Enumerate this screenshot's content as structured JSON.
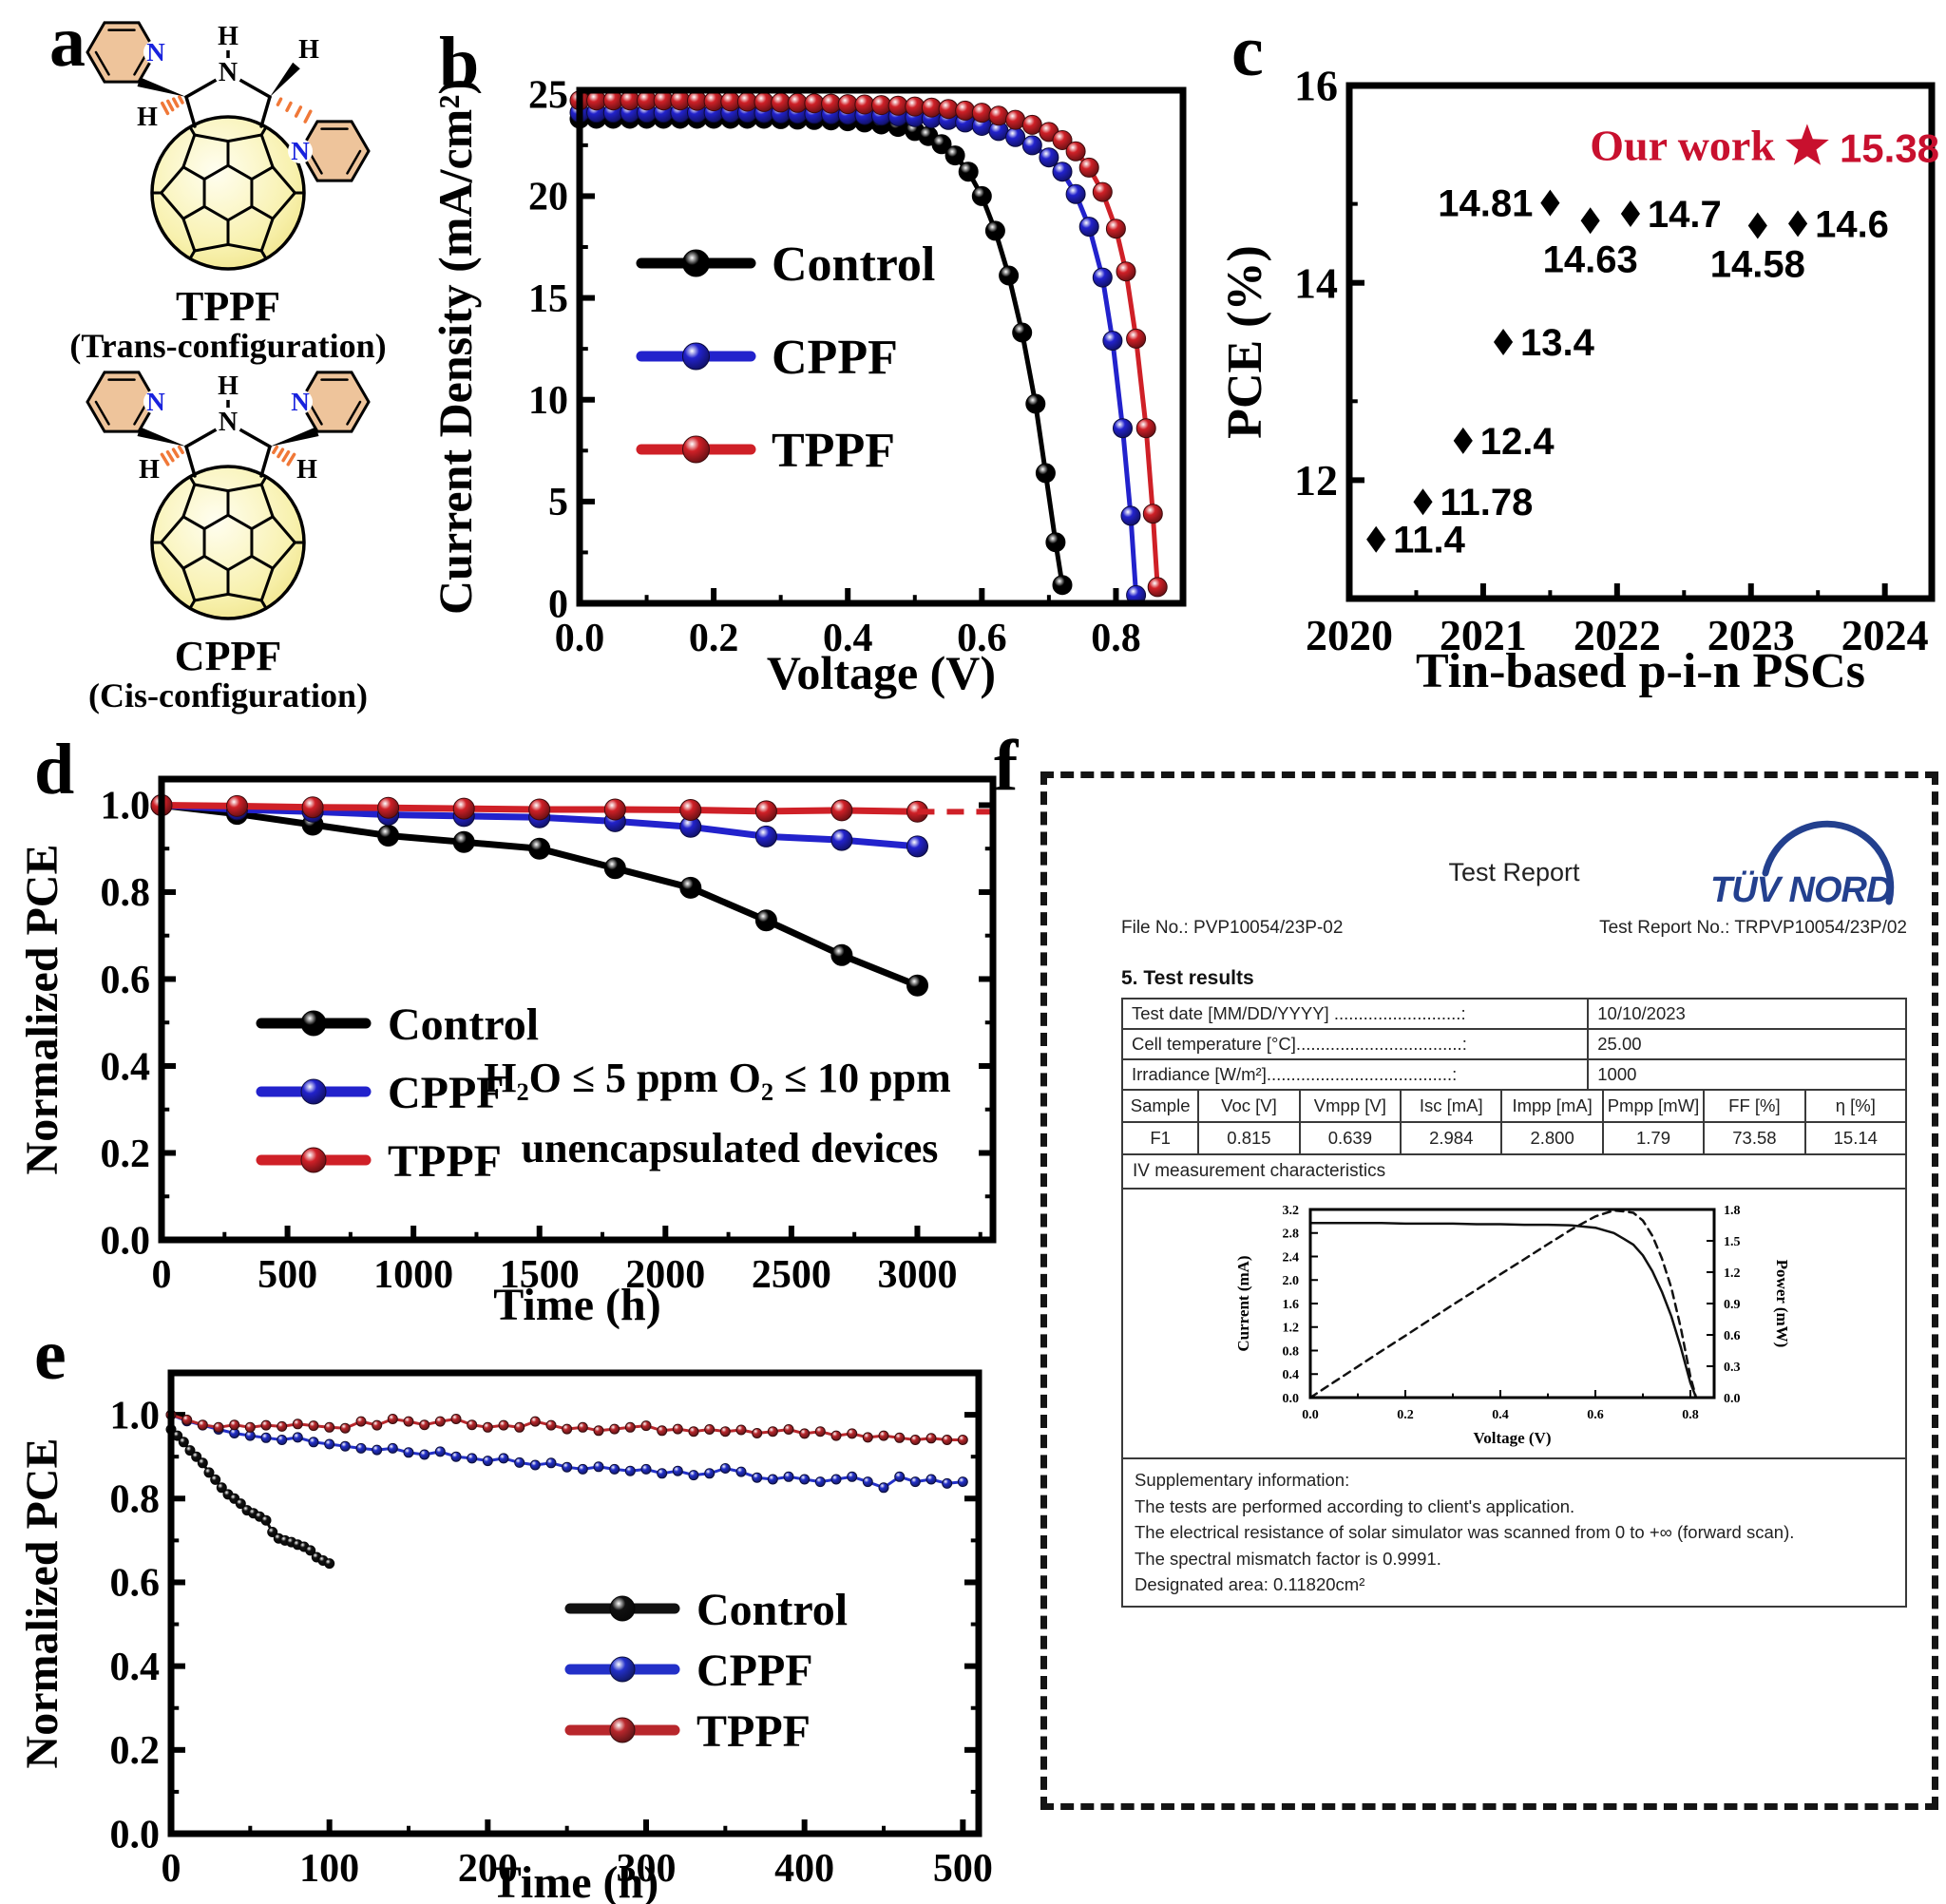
{
  "page": {
    "panel_labels": {
      "a": "a",
      "b": "b",
      "c": "c",
      "d": "d",
      "e": "e",
      "f": "f"
    }
  },
  "panel_a": {
    "molecules": [
      {
        "name": "TPPF",
        "config": "(Trans-configuration)",
        "type": "trans"
      },
      {
        "name": "CPPF",
        "config": "(Cis-configuration)",
        "type": "cis"
      }
    ],
    "atoms": {
      "nitrogen": "N",
      "hydrogen": "H"
    },
    "colors": {
      "nitrogen": "#1822dd",
      "ring_fill": "#eec49b",
      "hash_bond": "#f07838",
      "fullerene_fill": "#f5eda0"
    }
  },
  "chart_data": [
    {
      "id": "jv",
      "type": "line",
      "xlabel": "Voltage (V)",
      "ylabel": "Current Density (mA/cm²)",
      "xlim": [
        0,
        0.9
      ],
      "ylim": [
        0,
        25.2
      ],
      "xticks": {
        "values": [
          0,
          0.2,
          0.4,
          0.6,
          0.8
        ],
        "labels": [
          "0.0",
          "0.2",
          "0.4",
          "0.6",
          "0.8"
        ]
      },
      "yticks": {
        "values": [
          0,
          5,
          10,
          15,
          20,
          25
        ],
        "labels": [
          "0",
          "5",
          "10",
          "15",
          "20",
          "25"
        ]
      },
      "minor": {
        "x": 0.1,
        "y": 2.5
      },
      "legend": [
        {
          "label": "Control",
          "color": "#000000"
        },
        {
          "label": "CPPF",
          "color": "#2222cc"
        },
        {
          "label": "TPPF",
          "color": "#cf2027"
        }
      ],
      "series": [
        {
          "name": "Control",
          "color": "#000000",
          "x": [
            0,
            0.025,
            0.05,
            0.075,
            0.1,
            0.125,
            0.15,
            0.175,
            0.2,
            0.225,
            0.25,
            0.275,
            0.3,
            0.325,
            0.35,
            0.375,
            0.4,
            0.425,
            0.45,
            0.475,
            0.5,
            0.52,
            0.54,
            0.56,
            0.58,
            0.6,
            0.62,
            0.64,
            0.66,
            0.68,
            0.695,
            0.71,
            0.72
          ],
          "y": [
            23.8,
            23.8,
            23.8,
            23.8,
            23.8,
            23.8,
            23.8,
            23.8,
            23.8,
            23.8,
            23.8,
            23.8,
            23.78,
            23.76,
            23.74,
            23.72,
            23.68,
            23.62,
            23.52,
            23.4,
            23.2,
            22.95,
            22.55,
            22.0,
            21.2,
            20.0,
            18.3,
            16.1,
            13.3,
            9.8,
            6.4,
            3.0,
            0.9
          ]
        },
        {
          "name": "CPPF",
          "color": "#2222cc",
          "x": [
            0,
            0.025,
            0.05,
            0.075,
            0.1,
            0.125,
            0.15,
            0.175,
            0.2,
            0.225,
            0.25,
            0.275,
            0.3,
            0.325,
            0.35,
            0.375,
            0.4,
            0.425,
            0.45,
            0.475,
            0.5,
            0.525,
            0.55,
            0.575,
            0.6,
            0.625,
            0.65,
            0.675,
            0.7,
            0.72,
            0.74,
            0.76,
            0.78,
            0.795,
            0.81,
            0.822,
            0.83
          ],
          "y": [
            24.1,
            24.1,
            24.1,
            24.1,
            24.1,
            24.1,
            24.1,
            24.1,
            24.1,
            24.1,
            24.1,
            24.08,
            24.06,
            24.05,
            24.04,
            24.02,
            24.0,
            23.98,
            23.95,
            23.92,
            23.88,
            23.82,
            23.74,
            23.62,
            23.45,
            23.2,
            22.9,
            22.5,
            21.9,
            21.2,
            20.1,
            18.5,
            16.0,
            12.9,
            8.6,
            4.3,
            0.4
          ]
        },
        {
          "name": "TPPF",
          "color": "#cf2027",
          "x": [
            0,
            0.025,
            0.05,
            0.075,
            0.1,
            0.125,
            0.15,
            0.175,
            0.2,
            0.225,
            0.25,
            0.275,
            0.3,
            0.325,
            0.35,
            0.375,
            0.4,
            0.425,
            0.45,
            0.475,
            0.5,
            0.525,
            0.55,
            0.575,
            0.6,
            0.625,
            0.65,
            0.675,
            0.7,
            0.72,
            0.74,
            0.76,
            0.78,
            0.8,
            0.815,
            0.83,
            0.845,
            0.855,
            0.862
          ],
          "y": [
            24.7,
            24.7,
            24.7,
            24.7,
            24.7,
            24.7,
            24.7,
            24.68,
            24.66,
            24.65,
            24.64,
            24.62,
            24.6,
            24.58,
            24.56,
            24.54,
            24.52,
            24.5,
            24.47,
            24.44,
            24.4,
            24.35,
            24.28,
            24.2,
            24.1,
            23.95,
            23.75,
            23.5,
            23.15,
            22.75,
            22.2,
            21.4,
            20.2,
            18.4,
            16.3,
            13.0,
            8.6,
            4.4,
            0.8
          ]
        }
      ]
    },
    {
      "id": "progress",
      "type": "scatter",
      "xlabel": "Tin-based p-i-n PSCs",
      "ylabel": "PCE (%)",
      "xlim": [
        2020,
        2024.35
      ],
      "ylim": [
        10.8,
        16
      ],
      "xticks": {
        "values": [
          2020,
          2021,
          2022,
          2023,
          2024
        ],
        "labels": [
          "2020",
          "2021",
          "2022",
          "2023",
          "2024"
        ]
      },
      "yticks": {
        "values": [
          12,
          14,
          16
        ],
        "labels": [
          "12",
          "14",
          "16"
        ]
      },
      "minor": {
        "x": 0.5,
        "y": 1
      },
      "point_color": "#000000",
      "points": [
        {
          "x": 2020.2,
          "y": 11.4,
          "label": "11.4",
          "lpos": "right"
        },
        {
          "x": 2020.55,
          "y": 11.78,
          "label": "11.78",
          "lpos": "right"
        },
        {
          "x": 2020.85,
          "y": 12.4,
          "label": "12.4",
          "lpos": "right"
        },
        {
          "x": 2021.15,
          "y": 13.4,
          "label": "13.4",
          "lpos": "right"
        },
        {
          "x": 2021.5,
          "y": 14.81,
          "label": "14.81",
          "lpos": "left"
        },
        {
          "x": 2021.8,
          "y": 14.63,
          "label": "14.63",
          "lpos": "below"
        },
        {
          "x": 2022.1,
          "y": 14.7,
          "label": "14.7",
          "lpos": "right"
        },
        {
          "x": 2023.05,
          "y": 14.58,
          "label": "14.58",
          "lpos": "below"
        },
        {
          "x": 2023.35,
          "y": 14.6,
          "label": "14.6",
          "lpos": "right"
        }
      ],
      "our_work": {
        "x": 2023.42,
        "y": 15.38,
        "text": "Our work",
        "value": "15.38",
        "color": "#c8102e"
      }
    },
    {
      "id": "stab3000",
      "type": "line",
      "xlabel": "Time (h)",
      "ylabel": "Normalized PCE",
      "xlim": [
        0,
        3300
      ],
      "ylim": [
        0,
        1.06
      ],
      "xticks": {
        "values": [
          0,
          500,
          1000,
          1500,
          2000,
          2500,
          3000
        ],
        "labels": [
          "0",
          "500",
          "1000",
          "1500",
          "2000",
          "2500",
          "3000"
        ]
      },
      "yticks": {
        "values": [
          0,
          0.2,
          0.4,
          0.6,
          0.8,
          1.0
        ],
        "labels": [
          "0.0",
          "0.2",
          "0.4",
          "0.6",
          "0.8",
          "1.0"
        ]
      },
      "minor": {
        "x": 250,
        "y": 0.1
      },
      "legend": [
        {
          "label": "Control",
          "color": "#000000"
        },
        {
          "label": "CPPF",
          "color": "#2222cc"
        },
        {
          "label": "TPPF",
          "color": "#cf2027"
        }
      ],
      "annotations": [
        {
          "text": "H₂O ≤ 5 ppm O₂ ≤ 10 ppm"
        },
        {
          "text": "unencapsulated devices"
        }
      ],
      "series": [
        {
          "name": "Control",
          "color": "#000000",
          "x": [
            0,
            300,
            600,
            900,
            1200,
            1500,
            1800,
            2100,
            2400,
            2700,
            3000
          ],
          "y": [
            1.0,
            0.98,
            0.955,
            0.93,
            0.915,
            0.9,
            0.855,
            0.81,
            0.735,
            0.655,
            0.585
          ]
        },
        {
          "name": "CPPF",
          "color": "#2222cc",
          "x": [
            0,
            300,
            600,
            900,
            1200,
            1500,
            1800,
            2100,
            2400,
            2700,
            3000
          ],
          "y": [
            1.0,
            0.99,
            0.985,
            0.978,
            0.975,
            0.972,
            0.963,
            0.95,
            0.928,
            0.92,
            0.905
          ]
        },
        {
          "name": "TPPF",
          "color": "#cf2027",
          "x": [
            0,
            300,
            600,
            900,
            1200,
            1500,
            1800,
            2100,
            2400,
            2700,
            3000
          ],
          "y": [
            1.0,
            0.998,
            0.995,
            0.994,
            0.992,
            0.99,
            0.99,
            0.989,
            0.986,
            0.988,
            0.985
          ]
        }
      ],
      "extension": {
        "color": "#cf2027",
        "x": [
          3000,
          3290
        ],
        "y": [
          0.985,
          0.985
        ]
      }
    },
    {
      "id": "stab500",
      "type": "line",
      "xlabel": "Time (h)",
      "ylabel": "Normalized PCE",
      "xlim": [
        0,
        510
      ],
      "ylim": [
        0,
        1.1
      ],
      "xticks": {
        "values": [
          0,
          100,
          200,
          300,
          400,
          500
        ],
        "labels": [
          "0",
          "100",
          "200",
          "300",
          "400",
          "500"
        ]
      },
      "yticks": {
        "values": [
          0,
          0.2,
          0.4,
          0.6,
          0.8,
          1.0
        ],
        "labels": [
          "0.0",
          "0.2",
          "0.4",
          "0.6",
          "0.8",
          "1.0"
        ]
      },
      "minor": {
        "x": 50,
        "y": 0.1
      },
      "legend": [
        {
          "label": "Control",
          "color": "#111111"
        },
        {
          "label": "CPPF",
          "color": "#2330c8"
        },
        {
          "label": "TPPF",
          "color": "#b8272c"
        }
      ],
      "series": [
        {
          "name": "Control",
          "color": "#111111",
          "x_start": 0,
          "x_step": 4,
          "y": [
            0.965,
            0.95,
            0.935,
            0.915,
            0.9,
            0.885,
            0.862,
            0.845,
            0.826,
            0.81,
            0.8,
            0.788,
            0.772,
            0.765,
            0.757,
            0.748,
            0.72,
            0.705,
            0.7,
            0.696,
            0.69,
            0.685,
            0.676,
            0.66,
            0.652,
            0.645
          ]
        },
        {
          "name": "CPPF",
          "color": "#2330c8",
          "x_start": 0,
          "x_step": 10,
          "y": [
            1.0,
            0.985,
            0.975,
            0.965,
            0.956,
            0.95,
            0.945,
            0.94,
            0.946,
            0.935,
            0.93,
            0.925,
            0.92,
            0.916,
            0.92,
            0.91,
            0.905,
            0.912,
            0.9,
            0.896,
            0.89,
            0.896,
            0.886,
            0.88,
            0.885,
            0.875,
            0.87,
            0.876,
            0.87,
            0.866,
            0.87,
            0.86,
            0.866,
            0.856,
            0.86,
            0.872,
            0.864,
            0.85,
            0.846,
            0.852,
            0.846,
            0.84,
            0.846,
            0.852,
            0.84,
            0.826,
            0.852,
            0.84,
            0.846,
            0.836,
            0.84
          ]
        },
        {
          "name": "TPPF",
          "color": "#b8272c",
          "x_start": 0,
          "x_step": 10,
          "y": [
            1.0,
            0.988,
            0.976,
            0.97,
            0.976,
            0.97,
            0.975,
            0.972,
            0.978,
            0.974,
            0.97,
            0.968,
            0.984,
            0.975,
            0.99,
            0.984,
            0.976,
            0.984,
            0.99,
            0.976,
            0.97,
            0.975,
            0.97,
            0.984,
            0.975,
            0.966,
            0.97,
            0.962,
            0.966,
            0.97,
            0.974,
            0.962,
            0.966,
            0.96,
            0.965,
            0.96,
            0.964,
            0.956,
            0.96,
            0.965,
            0.955,
            0.96,
            0.95,
            0.955,
            0.946,
            0.95,
            0.945,
            0.94,
            0.944,
            0.94,
            0.94
          ]
        }
      ]
    },
    {
      "id": "iv_inset",
      "type": "line",
      "xlabel": "Voltage (V)",
      "ylabel": "Current (mA)",
      "ylabel_right": "Power (mW)",
      "xlim": [
        0,
        0.85
      ],
      "ylim": [
        0,
        3.2
      ],
      "y2lim": [
        0,
        1.8
      ],
      "xticks": {
        "values": [
          0,
          0.2,
          0.4,
          0.6,
          0.8
        ],
        "labels": [
          "0.0",
          "0.2",
          "0.4",
          "0.6",
          "0.8"
        ]
      },
      "yticks": {
        "values": [
          0,
          0.4,
          0.8,
          1.2,
          1.6,
          2.0,
          2.4,
          2.8,
          3.2
        ],
        "labels": [
          "0.0",
          "0.4",
          "0.8",
          "1.2",
          "1.6",
          "2.0",
          "2.4",
          "2.8",
          "3.2"
        ]
      },
      "y2ticks": {
        "values": [
          0,
          0.3,
          0.6,
          0.9,
          1.2,
          1.5,
          1.8
        ],
        "labels": [
          "0.0",
          "0.3",
          "0.6",
          "0.9",
          "1.2",
          "1.5",
          "1.8"
        ]
      },
      "minor": {
        "x": 0.1
      },
      "series": [
        {
          "name": "Current",
          "color": "#111111",
          "nomark": true,
          "x": [
            0,
            0.05,
            0.1,
            0.15,
            0.2,
            0.25,
            0.3,
            0.35,
            0.4,
            0.45,
            0.5,
            0.55,
            0.6,
            0.639,
            0.66,
            0.68,
            0.7,
            0.72,
            0.74,
            0.76,
            0.78,
            0.8,
            0.812
          ],
          "y": [
            2.97,
            2.97,
            2.97,
            2.97,
            2.96,
            2.96,
            2.96,
            2.95,
            2.95,
            2.94,
            2.94,
            2.93,
            2.89,
            2.8,
            2.7,
            2.6,
            2.42,
            2.15,
            1.8,
            1.38,
            0.85,
            0.25,
            0
          ]
        },
        {
          "name": "Power",
          "color": "#111111",
          "nomark": true,
          "dash": true,
          "axis": "right",
          "x": [
            0,
            0.05,
            0.1,
            0.15,
            0.2,
            0.25,
            0.3,
            0.35,
            0.4,
            0.45,
            0.5,
            0.55,
            0.6,
            0.639,
            0.66,
            0.68,
            0.7,
            0.72,
            0.74,
            0.76,
            0.78,
            0.8,
            0.812
          ],
          "y": [
            0,
            0.149,
            0.297,
            0.446,
            0.592,
            0.74,
            0.888,
            1.033,
            1.18,
            1.323,
            1.468,
            1.61,
            1.734,
            1.79,
            1.782,
            1.768,
            1.694,
            1.548,
            1.332,
            1.049,
            0.663,
            0.2,
            0
          ]
        }
      ]
    }
  ],
  "report": {
    "title": "Test Report",
    "logo_text": "TÜV NORD",
    "logo_color": "#23408e",
    "file_no": "File No.: PVP10054/23P-02",
    "report_no": "Test Report No.: TRPVP10054/23P/02",
    "section_heading": "5.  Test results",
    "conditions": [
      {
        "label": "Test date [MM/DD/YYYY] ..........................:",
        "value": "10/10/2023"
      },
      {
        "label": "Cell temperature [°C]..................................:",
        "value": "25.00"
      },
      {
        "label": "Irradiance [W/m²]......................................:",
        "value": "1000"
      }
    ],
    "results_headers": [
      "Sample",
      "Voc [V]",
      "Vmpp [V]",
      "Isc [mA]",
      "Impp [mA]",
      "Pmpp [mW]",
      "FF [%]",
      "η [%]"
    ],
    "results_rows": [
      [
        "F1",
        "0.815",
        "0.639",
        "2.984",
        "2.800",
        "1.79",
        "73.58",
        "15.14"
      ]
    ],
    "iv_heading": "IV measurement characteristics",
    "supplementary": [
      "Supplementary information:",
      "The tests are performed according to client's application.",
      "The electrical resistance of solar simulator was scanned from 0 to +∞ (forward scan).",
      "The spectral mismatch factor is 0.9991.",
      "Designated area: 0.11820cm²"
    ]
  }
}
